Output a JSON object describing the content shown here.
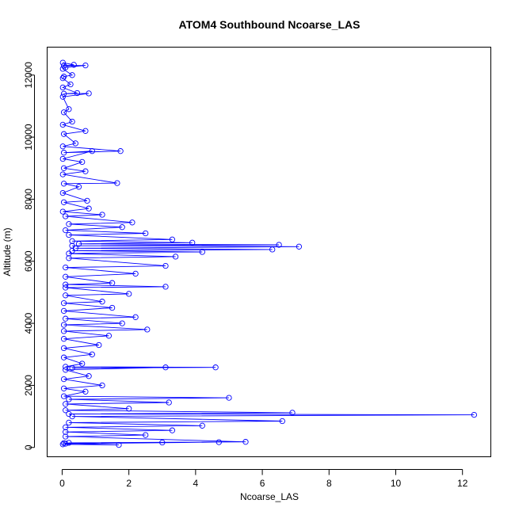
{
  "chart_data": {
    "type": "line",
    "title": "ATOM4 Southbound Ncoarse_LAS",
    "xlabel": "Ncoarse_LAS",
    "ylabel": "Altitude (m)",
    "xlim": [
      -0.45,
      12.85
    ],
    "ylim": [
      -300,
      12900
    ],
    "x_ticks": [
      0,
      2,
      4,
      6,
      8,
      10,
      12
    ],
    "y_ticks": [
      0,
      2000,
      4000,
      6000,
      8000,
      10000,
      12000
    ],
    "grid": false,
    "legend": "none",
    "series": [
      {
        "color": "#0000ff",
        "marker": "open-circle",
        "points": [
          [
            0.02,
            12400
          ],
          [
            0.35,
            12330
          ],
          [
            0.05,
            12300
          ],
          [
            0.7,
            12310
          ],
          [
            0.1,
            12250
          ],
          [
            0.02,
            12200
          ],
          [
            0.3,
            12000
          ],
          [
            0.05,
            11950
          ],
          [
            0.02,
            11900
          ],
          [
            0.25,
            11700
          ],
          [
            0.02,
            11600
          ],
          [
            0.45,
            11420
          ],
          [
            0.05,
            11400
          ],
          [
            0.8,
            11410
          ],
          [
            0.02,
            11300
          ],
          [
            0.2,
            10900
          ],
          [
            0.05,
            10800
          ],
          [
            0.3,
            10500
          ],
          [
            0.02,
            10400
          ],
          [
            0.7,
            10200
          ],
          [
            0.05,
            10100
          ],
          [
            0.4,
            9800
          ],
          [
            0.02,
            9700
          ],
          [
            1.75,
            9550
          ],
          [
            0.05,
            9500
          ],
          [
            0.9,
            9550
          ],
          [
            0.02,
            9300
          ],
          [
            0.6,
            9200
          ],
          [
            0.05,
            9000
          ],
          [
            0.7,
            8900
          ],
          [
            0.02,
            8800
          ],
          [
            1.65,
            8520
          ],
          [
            0.05,
            8500
          ],
          [
            0.5,
            8400
          ],
          [
            0.02,
            8200
          ],
          [
            0.75,
            7950
          ],
          [
            0.05,
            7900
          ],
          [
            0.8,
            7700
          ],
          [
            0.02,
            7600
          ],
          [
            1.2,
            7500
          ],
          [
            0.1,
            7450
          ],
          [
            2.1,
            7250
          ],
          [
            0.2,
            7200
          ],
          [
            1.8,
            7100
          ],
          [
            0.1,
            7000
          ],
          [
            2.5,
            6900
          ],
          [
            0.2,
            6850
          ],
          [
            3.3,
            6700
          ],
          [
            0.3,
            6650
          ],
          [
            3.9,
            6600
          ],
          [
            0.5,
            6560
          ],
          [
            6.5,
            6530
          ],
          [
            0.3,
            6500
          ],
          [
            7.1,
            6470
          ],
          [
            0.4,
            6420
          ],
          [
            6.3,
            6380
          ],
          [
            0.3,
            6340
          ],
          [
            4.2,
            6300
          ],
          [
            0.2,
            6250
          ],
          [
            3.4,
            6150
          ],
          [
            0.2,
            6100
          ],
          [
            3.1,
            5850
          ],
          [
            0.1,
            5800
          ],
          [
            2.2,
            5600
          ],
          [
            0.1,
            5500
          ],
          [
            1.5,
            5300
          ],
          [
            0.1,
            5250
          ],
          [
            3.1,
            5180
          ],
          [
            0.1,
            5150
          ],
          [
            2.0,
            4950
          ],
          [
            0.1,
            4900
          ],
          [
            1.2,
            4700
          ],
          [
            0.05,
            4650
          ],
          [
            1.5,
            4500
          ],
          [
            0.05,
            4400
          ],
          [
            2.2,
            4200
          ],
          [
            0.1,
            4150
          ],
          [
            1.8,
            4000
          ],
          [
            0.05,
            3950
          ],
          [
            2.55,
            3800
          ],
          [
            0.05,
            3750
          ],
          [
            1.4,
            3600
          ],
          [
            0.05,
            3500
          ],
          [
            1.1,
            3300
          ],
          [
            0.05,
            3200
          ],
          [
            0.9,
            3000
          ],
          [
            0.05,
            2900
          ],
          [
            0.6,
            2700
          ],
          [
            0.1,
            2600
          ],
          [
            4.6,
            2580
          ],
          [
            0.3,
            2560
          ],
          [
            3.1,
            2580
          ],
          [
            0.1,
            2500
          ],
          [
            0.8,
            2300
          ],
          [
            0.05,
            2200
          ],
          [
            1.2,
            2000
          ],
          [
            0.05,
            1900
          ],
          [
            0.7,
            1800
          ],
          [
            0.05,
            1650
          ],
          [
            5.0,
            1600
          ],
          [
            0.2,
            1550
          ],
          [
            3.2,
            1450
          ],
          [
            0.1,
            1400
          ],
          [
            2.0,
            1250
          ],
          [
            0.1,
            1200
          ],
          [
            6.9,
            1120
          ],
          [
            0.2,
            1080
          ],
          [
            12.35,
            1050
          ],
          [
            0.3,
            1000
          ],
          [
            6.6,
            850
          ],
          [
            0.2,
            800
          ],
          [
            4.2,
            700
          ],
          [
            0.1,
            650
          ],
          [
            3.3,
            550
          ],
          [
            0.1,
            500
          ],
          [
            2.5,
            400
          ],
          [
            0.1,
            350
          ],
          [
            5.5,
            180
          ],
          [
            0.2,
            150
          ],
          [
            4.7,
            170
          ],
          [
            0.1,
            120
          ],
          [
            3.0,
            160
          ],
          [
            0.05,
            140
          ],
          [
            1.7,
            80
          ],
          [
            0.02,
            100
          ]
        ]
      }
    ]
  }
}
